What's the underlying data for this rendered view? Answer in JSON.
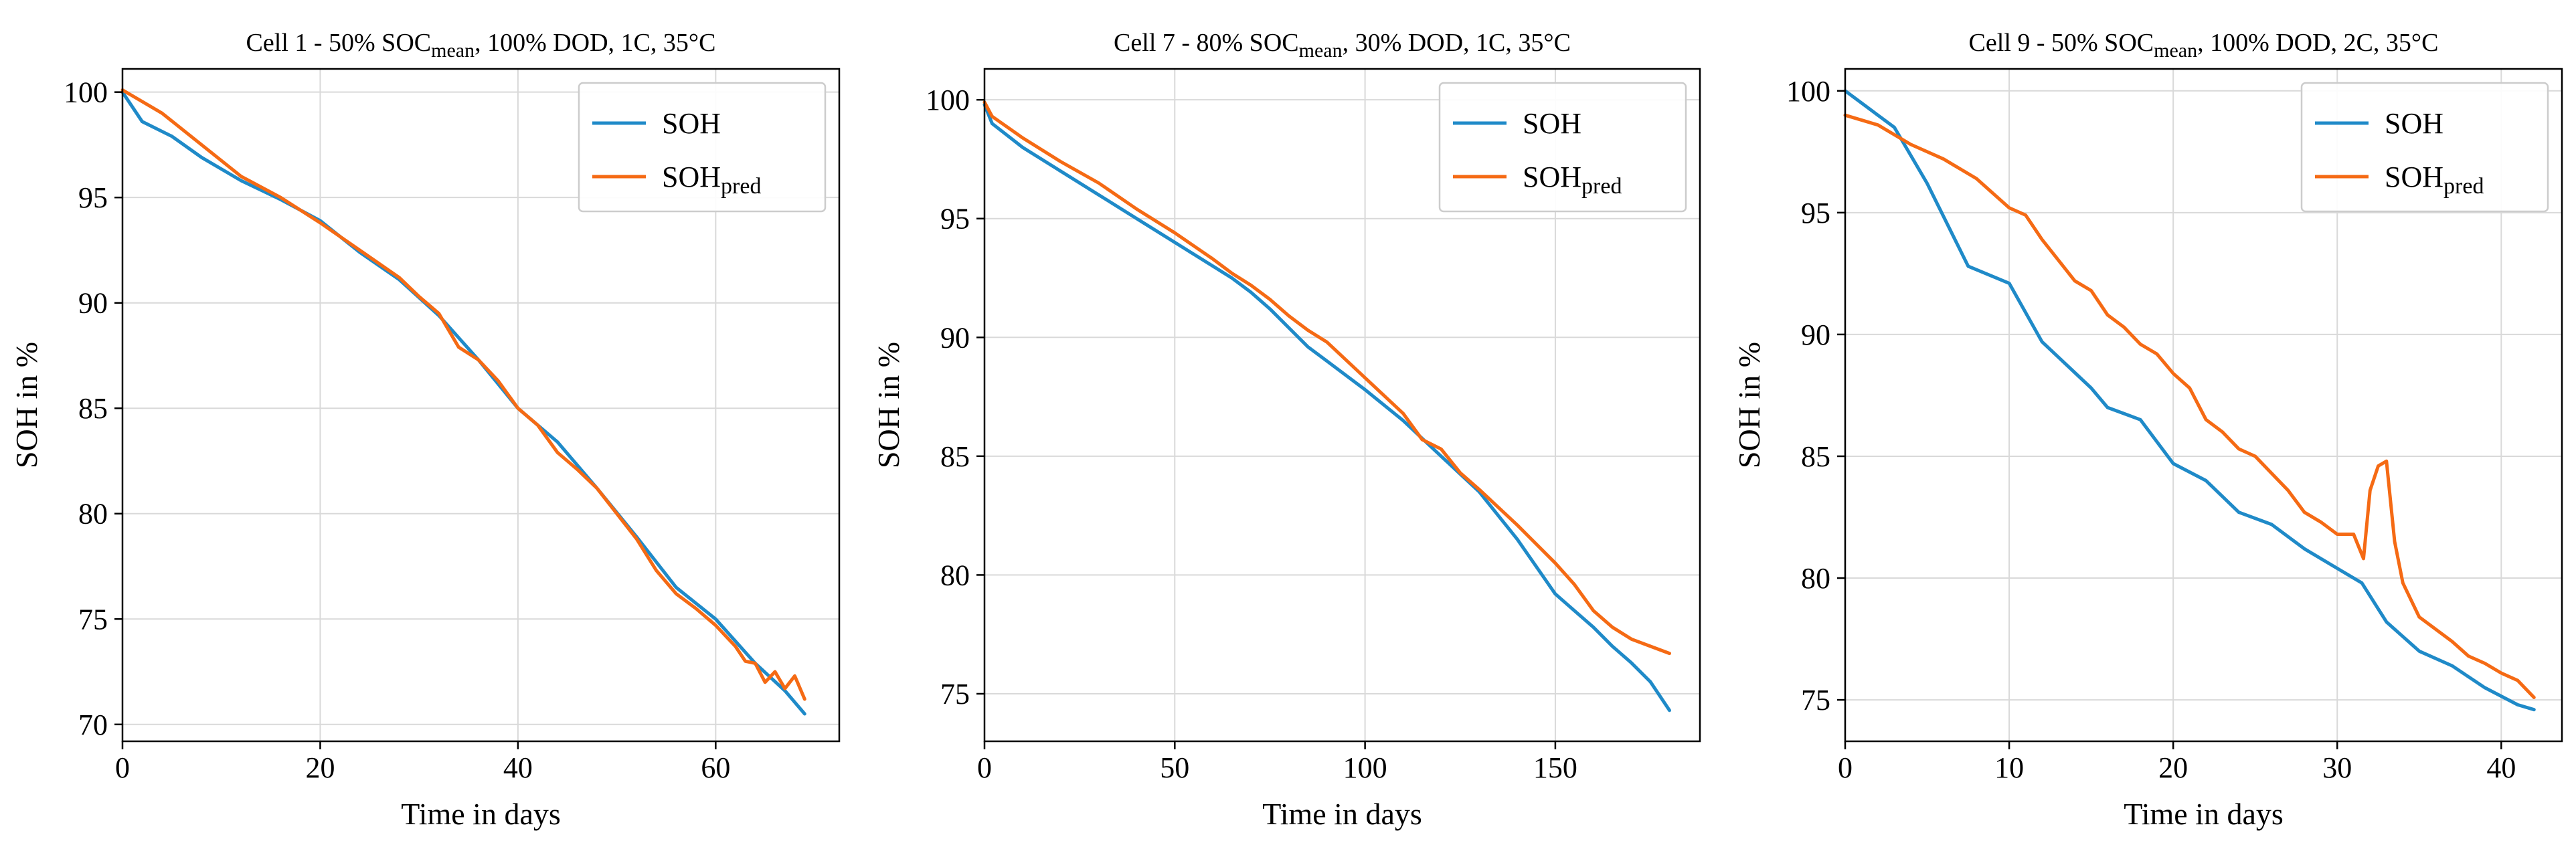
{
  "figure": {
    "colors": {
      "soh": "#1f8ac8",
      "pred": "#f56a14",
      "grid": "#d9d9d9",
      "axis": "#000000"
    }
  },
  "chart_data": [
    {
      "type": "line",
      "title": {
        "pre": "Cell 1 - 50% SOC",
        "sub": "mean",
        "post": ", 100% DOD, 1C, 35°C"
      },
      "xlabel": "Time in days",
      "ylabel": "SOH in %",
      "xlim": [
        0,
        72.5
      ],
      "ylim": [
        69.2,
        101.1
      ],
      "xticks": [
        0,
        20,
        40,
        60
      ],
      "yticks": [
        70,
        75,
        80,
        85,
        90,
        95,
        100
      ],
      "grid": true,
      "legend": {
        "position": "top-right",
        "entries": [
          {
            "main": "SOH",
            "sub": ""
          },
          {
            "main": "SOH",
            "sub": "pred"
          }
        ]
      },
      "series": [
        {
          "name": "SOH",
          "color": "#1f8ac8",
          "x": [
            0,
            2,
            5,
            8,
            12,
            16,
            20,
            24,
            28,
            32,
            36,
            40,
            44,
            48,
            52,
            56,
            60,
            64,
            67,
            69
          ],
          "y": [
            100,
            98.6,
            97.9,
            96.9,
            95.8,
            94.9,
            93.9,
            92.4,
            91.1,
            89.4,
            87.3,
            85.0,
            83.4,
            81.2,
            78.9,
            76.5,
            75.0,
            72.9,
            71.6,
            70.5
          ]
        },
        {
          "name": "SOH_pred",
          "color": "#f56a14",
          "x": [
            0,
            4,
            8,
            12,
            16,
            20,
            24,
            28,
            30,
            32,
            34,
            36,
            38,
            40,
            42,
            44,
            46,
            48,
            50,
            52,
            54,
            56,
            58,
            60,
            62,
            63,
            64,
            65,
            66,
            67,
            68,
            69
          ],
          "y": [
            100.1,
            99.0,
            97.5,
            96.0,
            95.0,
            93.8,
            92.5,
            91.2,
            90.3,
            89.5,
            87.9,
            87.3,
            86.3,
            85.0,
            84.2,
            82.9,
            82.1,
            81.2,
            80.0,
            78.8,
            77.3,
            76.2,
            75.5,
            74.7,
            73.7,
            73.0,
            72.9,
            72.0,
            72.5,
            71.7,
            72.3,
            71.2
          ]
        }
      ]
    },
    {
      "type": "line",
      "title": {
        "pre": "Cell 7 - 80% SOC",
        "sub": "mean",
        "post": ", 30% DOD, 1C, 35°C"
      },
      "xlabel": "Time in days",
      "ylabel": "SOH in %",
      "xlim": [
        0,
        188
      ],
      "ylim": [
        73.0,
        101.3
      ],
      "xticks": [
        0,
        50,
        100,
        150
      ],
      "yticks": [
        75,
        80,
        85,
        90,
        95,
        100
      ],
      "grid": true,
      "legend": {
        "position": "top-right",
        "entries": [
          {
            "main": "SOH",
            "sub": ""
          },
          {
            "main": "SOH",
            "sub": "pred"
          }
        ]
      },
      "series": [
        {
          "name": "SOH",
          "color": "#1f8ac8",
          "x": [
            0,
            2,
            10,
            20,
            30,
            40,
            50,
            60,
            65,
            70,
            75,
            80,
            85,
            90,
            100,
            110,
            120,
            130,
            140,
            150,
            155,
            160,
            165,
            170,
            175,
            180
          ],
          "y": [
            99.8,
            99.0,
            98.0,
            97.0,
            96.0,
            95.0,
            94.0,
            93.0,
            92.5,
            91.9,
            91.2,
            90.4,
            89.6,
            89.0,
            87.8,
            86.5,
            85.0,
            83.5,
            81.5,
            79.2,
            78.5,
            77.8,
            77.0,
            76.3,
            75.5,
            74.3
          ]
        },
        {
          "name": "SOH_pred",
          "color": "#f56a14",
          "x": [
            0,
            2,
            10,
            20,
            30,
            40,
            50,
            60,
            65,
            70,
            75,
            80,
            85,
            90,
            100,
            110,
            115,
            120,
            125,
            130,
            140,
            150,
            155,
            160,
            165,
            170,
            175,
            180
          ],
          "y": [
            99.9,
            99.3,
            98.4,
            97.4,
            96.5,
            95.4,
            94.4,
            93.3,
            92.7,
            92.2,
            91.6,
            90.9,
            90.3,
            89.8,
            88.3,
            86.8,
            85.7,
            85.3,
            84.3,
            83.6,
            82.1,
            80.5,
            79.6,
            78.5,
            77.8,
            77.3,
            77.0,
            76.7
          ]
        }
      ]
    },
    {
      "type": "line",
      "title": {
        "pre": "Cell 9 - 50% SOC",
        "sub": "mean",
        "post": ", 100% DOD, 2C, 35°C"
      },
      "xlabel": "Time in days",
      "ylabel": "SOH in %",
      "xlim": [
        0,
        43.7
      ],
      "ylim": [
        73.3,
        100.9
      ],
      "xticks": [
        0,
        10,
        20,
        30,
        40
      ],
      "yticks": [
        75,
        80,
        85,
        90,
        95,
        100
      ],
      "grid": true,
      "legend": {
        "position": "top-right",
        "entries": [
          {
            "main": "SOH",
            "sub": ""
          },
          {
            "main": "SOH",
            "sub": "pred"
          }
        ]
      },
      "series": [
        {
          "name": "SOH",
          "color": "#1f8ac8",
          "x": [
            0,
            2,
            3,
            5,
            7.5,
            10,
            12,
            15,
            16,
            18,
            20,
            22,
            24,
            26,
            28,
            30,
            31.5,
            33,
            35,
            37,
            39,
            41,
            42
          ],
          "y": [
            100,
            99.0,
            98.5,
            96.2,
            92.8,
            92.1,
            89.7,
            87.8,
            87.0,
            86.5,
            84.7,
            84.0,
            82.7,
            82.2,
            81.2,
            80.4,
            79.8,
            78.2,
            77.0,
            76.4,
            75.5,
            74.8,
            74.6
          ]
        },
        {
          "name": "SOH_pred",
          "color": "#f56a14",
          "x": [
            0,
            2,
            4,
            6,
            8,
            10,
            11,
            12,
            14,
            15,
            16,
            17,
            18,
            19,
            20,
            21,
            22,
            23,
            24,
            25,
            26,
            27,
            28,
            29,
            30,
            31,
            31.6,
            32,
            32.5,
            33,
            33.5,
            34,
            35,
            36,
            37,
            38,
            39,
            40,
            41,
            42
          ],
          "y": [
            99.0,
            98.6,
            97.8,
            97.2,
            96.4,
            95.2,
            94.9,
            93.9,
            92.2,
            91.8,
            90.8,
            90.3,
            89.6,
            89.2,
            88.4,
            87.8,
            86.5,
            86.0,
            85.3,
            85.0,
            84.3,
            83.6,
            82.7,
            82.3,
            81.8,
            81.8,
            80.8,
            83.6,
            84.6,
            84.8,
            81.5,
            79.8,
            78.4,
            77.9,
            77.4,
            76.8,
            76.5,
            76.1,
            75.8,
            75.1
          ]
        }
      ]
    }
  ]
}
